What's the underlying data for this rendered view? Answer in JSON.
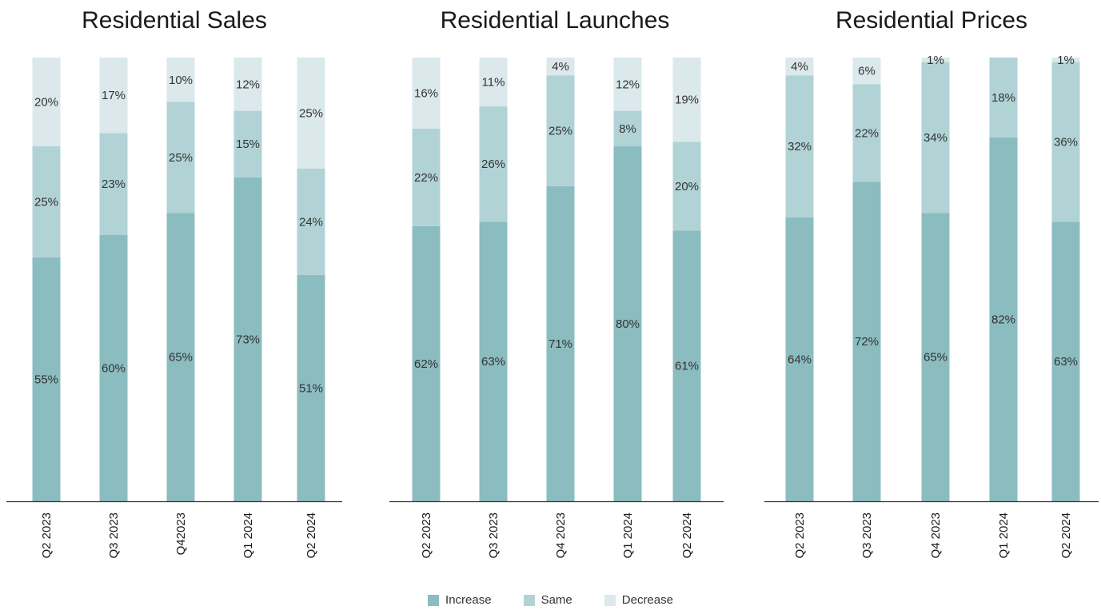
{
  "colors": {
    "Increase": "#8bbcc0",
    "Same": "#b2d3d6",
    "Decrease": "#dbe8ec",
    "axis": "#333333"
  },
  "legend": [
    {
      "name": "Increase",
      "label": "Increase"
    },
    {
      "name": "Same",
      "label": "Same"
    },
    {
      "name": "Decrease",
      "label": "Decrease"
    }
  ],
  "chart_data": [
    {
      "type": "bar",
      "stacked": true,
      "title": "Residential Sales",
      "categories": [
        "Q2 2023",
        "Q3 2023",
        "Q42023",
        "Q1 2024",
        "Q2 2024"
      ],
      "series": [
        {
          "name": "Increase",
          "values": [
            55,
            60,
            65,
            73,
            51
          ]
        },
        {
          "name": "Same",
          "values": [
            25,
            23,
            25,
            15,
            24
          ]
        },
        {
          "name": "Decrease",
          "values": [
            20,
            17,
            10,
            12,
            25
          ]
        }
      ],
      "ylim": [
        0,
        100
      ],
      "grid": false,
      "legend_position": "bottom"
    },
    {
      "type": "bar",
      "stacked": true,
      "title": "Residential Launches",
      "categories": [
        "Q2 2023",
        "Q3 2023",
        "Q4 2023",
        "Q1 2024",
        "Q2 2024"
      ],
      "series": [
        {
          "name": "Increase",
          "values": [
            62,
            63,
            71,
            80,
            61
          ]
        },
        {
          "name": "Same",
          "values": [
            22,
            26,
            25,
            8,
            20
          ]
        },
        {
          "name": "Decrease",
          "values": [
            16,
            11,
            4,
            12,
            19
          ]
        }
      ],
      "ylim": [
        0,
        100
      ],
      "grid": false,
      "legend_position": "bottom"
    },
    {
      "type": "bar",
      "stacked": true,
      "title": "Residential Prices",
      "categories": [
        "Q2 2023",
        "Q3 2023",
        "Q4 2023",
        "Q1 2024",
        "Q2 2024"
      ],
      "series": [
        {
          "name": "Increase",
          "values": [
            64,
            72,
            65,
            82,
            63
          ]
        },
        {
          "name": "Same",
          "values": [
            32,
            22,
            34,
            18,
            36
          ]
        },
        {
          "name": "Decrease",
          "values": [
            4,
            6,
            1,
            null,
            1
          ]
        }
      ],
      "ylim": [
        0,
        100
      ],
      "grid": false,
      "legend_position": "bottom"
    }
  ]
}
